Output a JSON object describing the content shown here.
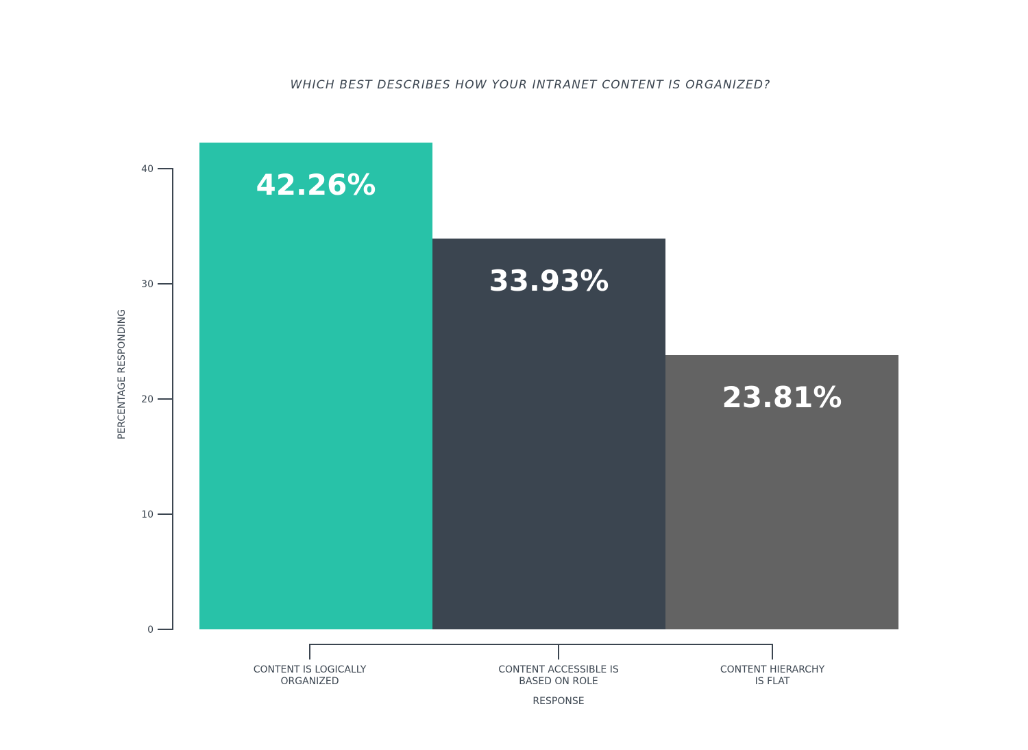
{
  "chart_data": {
    "type": "bar",
    "title": "WHICH BEST DESCRIBES HOW YOUR INTRANET CONTENT IS ORGANIZED?",
    "xlabel": "RESPONSE",
    "ylabel": "PERCENTAGE RESPONDING",
    "categories": [
      [
        "CONTENT IS LOGICALLY",
        "ORGANIZED"
      ],
      [
        "CONTENT ACCESSIBLE IS",
        "BASED ON ROLE"
      ],
      [
        "CONTENT HIERARCHY",
        "IS FLAT"
      ]
    ],
    "values": [
      42.26,
      33.93,
      23.81
    ],
    "value_labels": [
      "42.26%",
      "33.93%",
      "23.81%"
    ],
    "colors": [
      "#28c2a8",
      "#3b4550",
      "#636363"
    ],
    "ylim": [
      0,
      40
    ],
    "yticks": [
      0,
      10,
      20,
      30,
      40
    ],
    "grid": false,
    "legend": "none"
  }
}
